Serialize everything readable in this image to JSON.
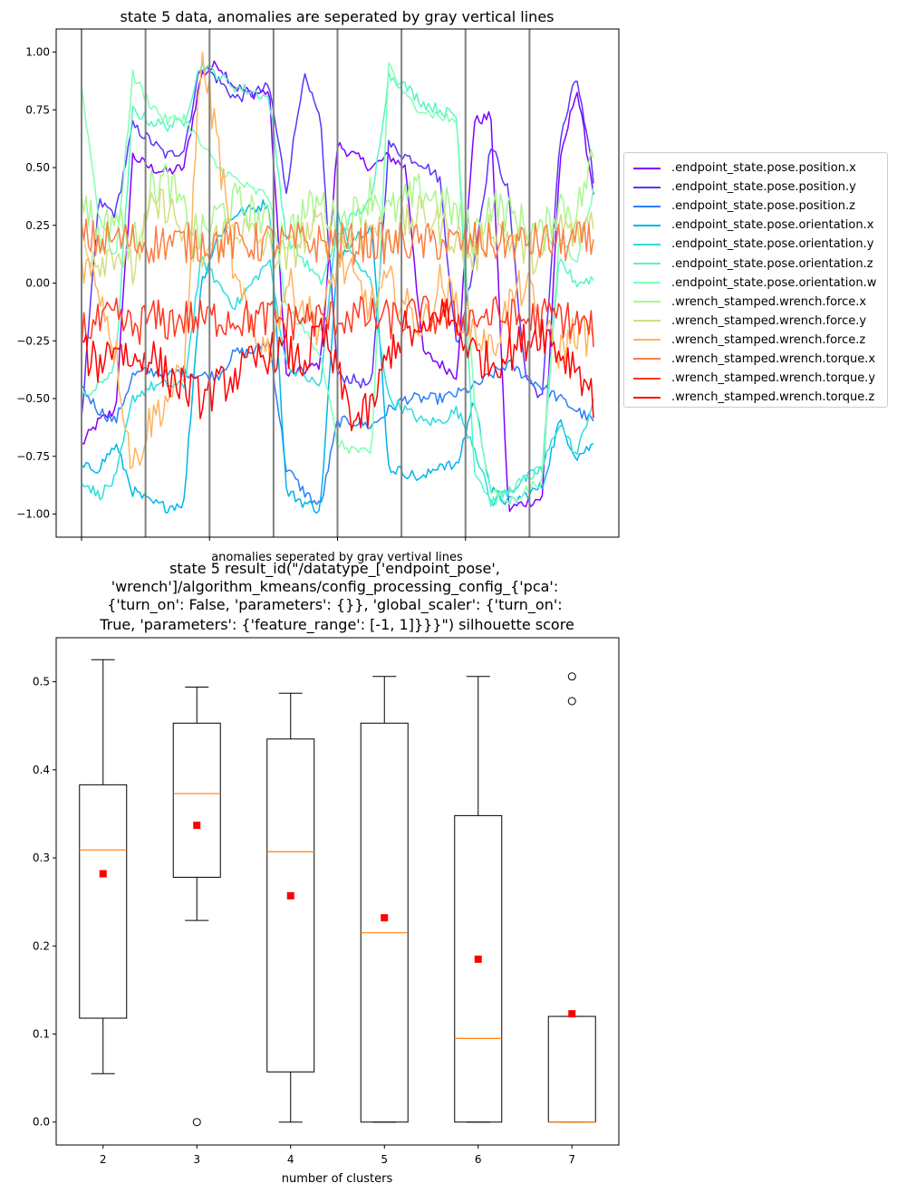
{
  "chart_data": [
    {
      "type": "line",
      "title": "state 5 data, anomalies are seperated by gray vertical lines",
      "xlabel": "anomalies seperated by gray vertival lines",
      "ylabel": "",
      "ylim": [
        -1.1,
        1.1
      ],
      "yticks": [
        1.0,
        0.75,
        0.5,
        0.25,
        0.0,
        -0.25,
        -0.5,
        -0.75,
        -1.0
      ],
      "ytick_labels": [
        "1.00",
        "0.75",
        "0.50",
        "0.25",
        "0.00",
        "−0.25",
        "−0.50",
        "−0.75",
        "−1.00"
      ],
      "n_segments": 8,
      "legend_position": "center-right outside",
      "separator_color": "#808080",
      "series": [
        {
          "name": ".endpoint_state.pose.position.x",
          "color": "#8000ff",
          "values": [
            -0.7,
            -0.6,
            -0.55,
            0.55,
            0.5,
            0.48,
            0.5,
            0.9,
            0.95,
            0.85,
            0.82,
            0.83,
            -0.4,
            -0.38,
            -0.35,
            0.6,
            0.55,
            0.5,
            0.55,
            0.5,
            -0.3,
            -0.35,
            -0.4,
            0.7,
            0.72,
            -0.98,
            -0.95,
            -0.93,
            0.5,
            0.85,
            0.4
          ]
        },
        {
          "name": ".endpoint_state.pose.position.y",
          "color": "#5a35fc",
          "values": [
            -0.6,
            0.35,
            0.3,
            0.68,
            0.62,
            0.55,
            0.58,
            0.95,
            0.88,
            0.8,
            0.82,
            0.85,
            0.4,
            0.9,
            0.7,
            -0.4,
            -0.42,
            -0.45,
            0.6,
            0.55,
            0.52,
            0.45,
            -0.3,
            0.1,
            0.6,
            0.4,
            -0.4,
            -0.5,
            0.6,
            0.9,
            0.45
          ]
        },
        {
          "name": ".endpoint_state.pose.position.z",
          "color": "#2c7ef7",
          "values": [
            -0.45,
            -0.55,
            -0.6,
            -0.4,
            -0.38,
            -0.4,
            -0.38,
            -0.4,
            -0.4,
            -0.3,
            -0.3,
            -0.25,
            -0.8,
            -0.9,
            -0.97,
            -0.6,
            -0.6,
            -0.62,
            -0.55,
            -0.5,
            -0.5,
            -0.5,
            -0.48,
            -0.45,
            -0.4,
            -0.35,
            -0.4,
            -0.45,
            -0.5,
            -0.55,
            -0.6
          ]
        },
        {
          "name": ".endpoint_state.pose.orientation.x",
          "color": "#00b5eb",
          "values": [
            -0.8,
            -0.8,
            -0.7,
            -0.9,
            -0.95,
            -0.97,
            -0.95,
            0.0,
            0.2,
            0.3,
            0.32,
            0.35,
            -0.9,
            -0.95,
            -0.98,
            0.1,
            0.2,
            0.25,
            -0.8,
            -0.82,
            -0.85,
            -0.78,
            -0.8,
            -0.5,
            -0.9,
            -0.95,
            -0.92,
            -0.88,
            -0.6,
            -0.75,
            -0.7
          ]
        },
        {
          "name": ".endpoint_state.pose.orientation.y",
          "color": "#2adddd",
          "values": [
            -0.85,
            -0.92,
            -0.85,
            -0.5,
            -0.45,
            -0.44,
            -0.45,
            0.1,
            0.0,
            -0.1,
            0.0,
            0.1,
            -0.35,
            -0.4,
            -0.45,
            0.3,
            0.1,
            0.0,
            -0.5,
            -0.55,
            -0.6,
            -0.6,
            -0.55,
            -0.7,
            -0.95,
            -0.9,
            -0.85,
            -0.8,
            -0.6,
            -0.75,
            -0.5
          ]
        },
        {
          "name": ".endpoint_state.pose.orientation.z",
          "color": "#56f6c5",
          "values": [
            -0.5,
            -0.45,
            -0.35,
            0.75,
            0.7,
            0.68,
            0.7,
            0.95,
            0.9,
            0.85,
            0.83,
            0.8,
            0.2,
            0.1,
            0.0,
            0.2,
            0.3,
            0.35,
            0.9,
            0.85,
            0.78,
            0.75,
            0.72,
            -0.8,
            -0.95,
            -0.9,
            -0.85,
            -0.8,
            0.1,
            0.0,
            0.02
          ]
        },
        {
          "name": ".endpoint_state.pose.orientation.w",
          "color": "#80ffb4",
          "values": [
            0.85,
            0.3,
            0.1,
            0.9,
            0.78,
            0.7,
            0.72,
            0.6,
            0.5,
            0.45,
            0.4,
            0.38,
            -0.1,
            -0.2,
            -0.3,
            -0.7,
            -0.72,
            -0.75,
            0.95,
            0.8,
            0.75,
            0.72,
            0.7,
            -0.5,
            -0.9,
            -0.95,
            -0.9,
            -0.85,
            0.2,
            0.1,
            0.4
          ]
        },
        {
          "name": ".wrench_stamped.wrench.force.x",
          "color": "#abf68e",
          "values": [
            0.4,
            0.2,
            0.3,
            0.15,
            0.4,
            0.45,
            0.3,
            0.2,
            0.3,
            0.35,
            0.3,
            0.25,
            0.2,
            0.3,
            0.35,
            0.25,
            0.3,
            0.4,
            0.3,
            0.35,
            0.4,
            0.35,
            0.3,
            0.2,
            0.35,
            0.3,
            0.25,
            0.2,
            0.35,
            0.3,
            0.55
          ]
        },
        {
          "name": ".wrench_stamped.wrench.force.y",
          "color": "#d4dd80",
          "values": [
            0.2,
            0.1,
            0.15,
            0.05,
            0.3,
            0.35,
            0.2,
            0.1,
            0.2,
            0.25,
            0.2,
            0.15,
            0.1,
            0.2,
            0.25,
            0.15,
            0.2,
            0.25,
            0.2,
            0.25,
            0.3,
            0.25,
            0.2,
            0.1,
            0.25,
            0.2,
            0.15,
            0.1,
            0.25,
            0.2,
            0.3
          ]
        },
        {
          "name": ".wrench_stamped.wrench.force.z",
          "color": "#ffb360",
          "values": [
            0.1,
            0.0,
            -0.3,
            -0.8,
            -0.6,
            -0.5,
            -0.4,
            1.0,
            0.6,
            0.0,
            -0.2,
            -0.3,
            0.0,
            -0.1,
            -0.2,
            0.1,
            0.0,
            -0.1,
            0.0,
            -0.1,
            -0.2,
            0.0,
            -0.1,
            -0.2,
            -0.3,
            -0.1,
            0.0,
            -0.2,
            -0.3,
            -0.2,
            -0.25
          ]
        },
        {
          "name": ".wrench_stamped.wrench.torque.x",
          "color": "#ff7e41",
          "values": [
            0.2,
            0.18,
            0.19,
            0.18,
            0.17,
            0.18,
            0.17,
            0.18,
            0.17,
            0.18,
            0.17,
            0.18,
            0.17,
            0.18,
            0.17,
            0.18,
            0.17,
            0.18,
            0.17,
            0.18,
            0.17,
            0.18,
            0.17,
            0.18,
            0.17,
            0.18,
            0.17,
            0.18,
            0.17,
            0.18,
            0.17
          ]
        },
        {
          "name": ".wrench_stamped.wrench.torque.y",
          "color": "#ff3720",
          "values": [
            -0.2,
            -0.18,
            -0.15,
            -0.2,
            -0.15,
            -0.17,
            -0.15,
            -0.16,
            -0.15,
            -0.15,
            -0.16,
            -0.15,
            -0.17,
            -0.15,
            -0.16,
            -0.15,
            -0.14,
            -0.15,
            -0.16,
            -0.15,
            -0.14,
            -0.15,
            -0.16,
            -0.15,
            -0.14,
            -0.15,
            -0.16,
            -0.15,
            -0.14,
            -0.18,
            -0.2
          ]
        },
        {
          "name": ".wrench_stamped.wrench.torque.z",
          "color": "#ff0000",
          "values": [
            -0.3,
            -0.35,
            -0.25,
            -0.35,
            -0.3,
            -0.4,
            -0.45,
            -0.5,
            -0.45,
            -0.4,
            -0.35,
            -0.3,
            -0.3,
            -0.35,
            -0.2,
            -0.4,
            -0.6,
            -0.55,
            -0.3,
            -0.2,
            -0.25,
            -0.1,
            -0.2,
            -0.3,
            -0.35,
            -0.3,
            -0.25,
            -0.2,
            -0.3,
            -0.35,
            -0.5
          ]
        }
      ]
    },
    {
      "type": "box",
      "title": "state 5 result_id(\"/datatype_['endpoint_pose', 'wrench']/algorithm_kmeans/config_processing_config_{'pca': {'turn_on': False, 'parameters': {}}, 'global_scaler': {'turn_on': True, 'parameters': {'feature_range': [-1, 1]}}}\") silhouette score",
      "title_lines": [
        "state 5 result_id(\"/datatype_['endpoint_pose',",
        "'wrench']/algorithm_kmeans/config_processing_config_{'pca':",
        "{'turn_on': False, 'parameters': {}}, 'global_scaler': {'turn_on':",
        "True, 'parameters': {'feature_range': [-1, 1]}}}\") silhouette score"
      ],
      "xlabel": "number of clusters",
      "ylabel": "",
      "ylim": [
        -0.026,
        0.55
      ],
      "yticks": [
        0.0,
        0.1,
        0.2,
        0.3,
        0.4,
        0.5
      ],
      "ytick_labels": [
        "0.0",
        "0.1",
        "0.2",
        "0.3",
        "0.4",
        "0.5"
      ],
      "categories": [
        "2",
        "3",
        "4",
        "5",
        "6",
        "7"
      ],
      "box_color": "#000000",
      "median_color": "#ff7f0e",
      "mean_color": "#ff0000",
      "boxes": [
        {
          "whisker_low": 0.055,
          "q1": 0.118,
          "median": 0.309,
          "q3": 0.383,
          "whisker_high": 0.525,
          "mean": 0.282,
          "outliers": []
        },
        {
          "whisker_low": 0.229,
          "q1": 0.278,
          "median": 0.373,
          "q3": 0.453,
          "whisker_high": 0.494,
          "mean": 0.337,
          "outliers": [
            0.0
          ]
        },
        {
          "whisker_low": 0.0,
          "q1": 0.057,
          "median": 0.307,
          "q3": 0.435,
          "whisker_high": 0.487,
          "mean": 0.257,
          "outliers": []
        },
        {
          "whisker_low": 0.0,
          "q1": 0.0,
          "median": 0.215,
          "q3": 0.453,
          "whisker_high": 0.506,
          "mean": 0.232,
          "outliers": []
        },
        {
          "whisker_low": 0.0,
          "q1": 0.0,
          "median": 0.095,
          "q3": 0.348,
          "whisker_high": 0.506,
          "mean": 0.185,
          "outliers": []
        },
        {
          "whisker_low": 0.0,
          "q1": 0.0,
          "median": 0.0,
          "q3": 0.12,
          "whisker_high": 0.12,
          "mean": 0.123,
          "outliers": [
            0.478,
            0.506
          ]
        }
      ]
    }
  ]
}
